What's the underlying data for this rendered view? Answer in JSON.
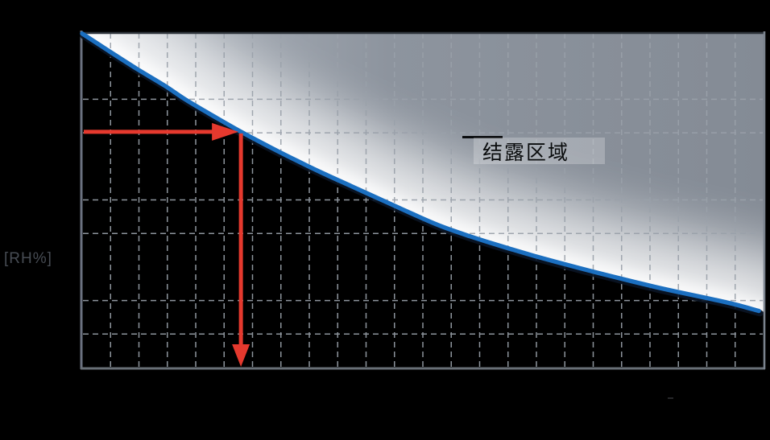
{
  "colors": {
    "background": "#000000",
    "curve": "#1b6fc0",
    "curve_shadow": "#0a1424",
    "marker_red": "#e5392e",
    "grid": "#9aa1aa",
    "border_left": "#6b7280",
    "border_bottom": "#697077",
    "border_right": "#7b838e",
    "border_top": "#2e343b",
    "fill_dark": "#848b95",
    "fill_mid": "#8d949e",
    "fill_light": "#b6bcc4",
    "glow": "#ffffff",
    "ylabel_text": "#474c54",
    "annotation_text": "#0a0c0d",
    "annotation_bg": "rgba(255,255,255,0.24)",
    "leader_line": "#0b0d0f"
  },
  "labels": {
    "ylabel": "[RH%]",
    "region": "结露区域"
  },
  "chart_data": {
    "type": "area",
    "title": "",
    "xlabel": "",
    "ylabel": "[RH%]",
    "annotation": "结露区域",
    "grid": "dashed",
    "legend": "none",
    "x_axis": {
      "min": 0,
      "max": 100,
      "tick_labels_visible": false,
      "vertical_divisions": 24
    },
    "y_axis": {
      "min": 0,
      "max": 100,
      "unit": "RH%",
      "tick_labels_visible": false,
      "h_gridlines_rh": [
        80,
        70,
        50,
        40,
        20,
        10
      ]
    },
    "series": [
      {
        "name": "dew-condensation-boundary",
        "type": "line",
        "color": "#1b6fc0",
        "points": [
          {
            "x": 0,
            "rh": 99.6
          },
          {
            "x": 4,
            "rh": 94.3
          },
          {
            "x": 8,
            "rh": 89.1
          },
          {
            "x": 12,
            "rh": 84.2
          },
          {
            "x": 15.1,
            "rh": 80.0
          },
          {
            "x": 19,
            "rh": 75.3
          },
          {
            "x": 23.3,
            "rh": 70.3
          },
          {
            "x": 27.5,
            "rh": 65.8
          },
          {
            "x": 31.5,
            "rh": 61.7
          },
          {
            "x": 35.5,
            "rh": 57.8
          },
          {
            "x": 39.5,
            "rh": 54.1
          },
          {
            "x": 44.7,
            "rh": 49.3
          },
          {
            "x": 48.5,
            "rh": 45.8
          },
          {
            "x": 52.5,
            "rh": 42.3
          },
          {
            "x": 57,
            "rh": 39.1
          },
          {
            "x": 61.5,
            "rh": 36.2
          },
          {
            "x": 66,
            "rh": 33.5
          },
          {
            "x": 70.5,
            "rh": 31.0
          },
          {
            "x": 75,
            "rh": 28.6
          },
          {
            "x": 79.5,
            "rh": 26.3
          },
          {
            "x": 84,
            "rh": 24.1
          },
          {
            "x": 88,
            "rh": 22.3
          },
          {
            "x": 92,
            "rh": 20.6
          },
          {
            "x": 95.5,
            "rh": 19.0
          },
          {
            "x": 99.3,
            "rh": 16.9
          }
        ]
      }
    ],
    "marker": {
      "x_pct": 23.3,
      "rh_pct": 70.3
    },
    "region_above_curve_label": "结露区域"
  }
}
